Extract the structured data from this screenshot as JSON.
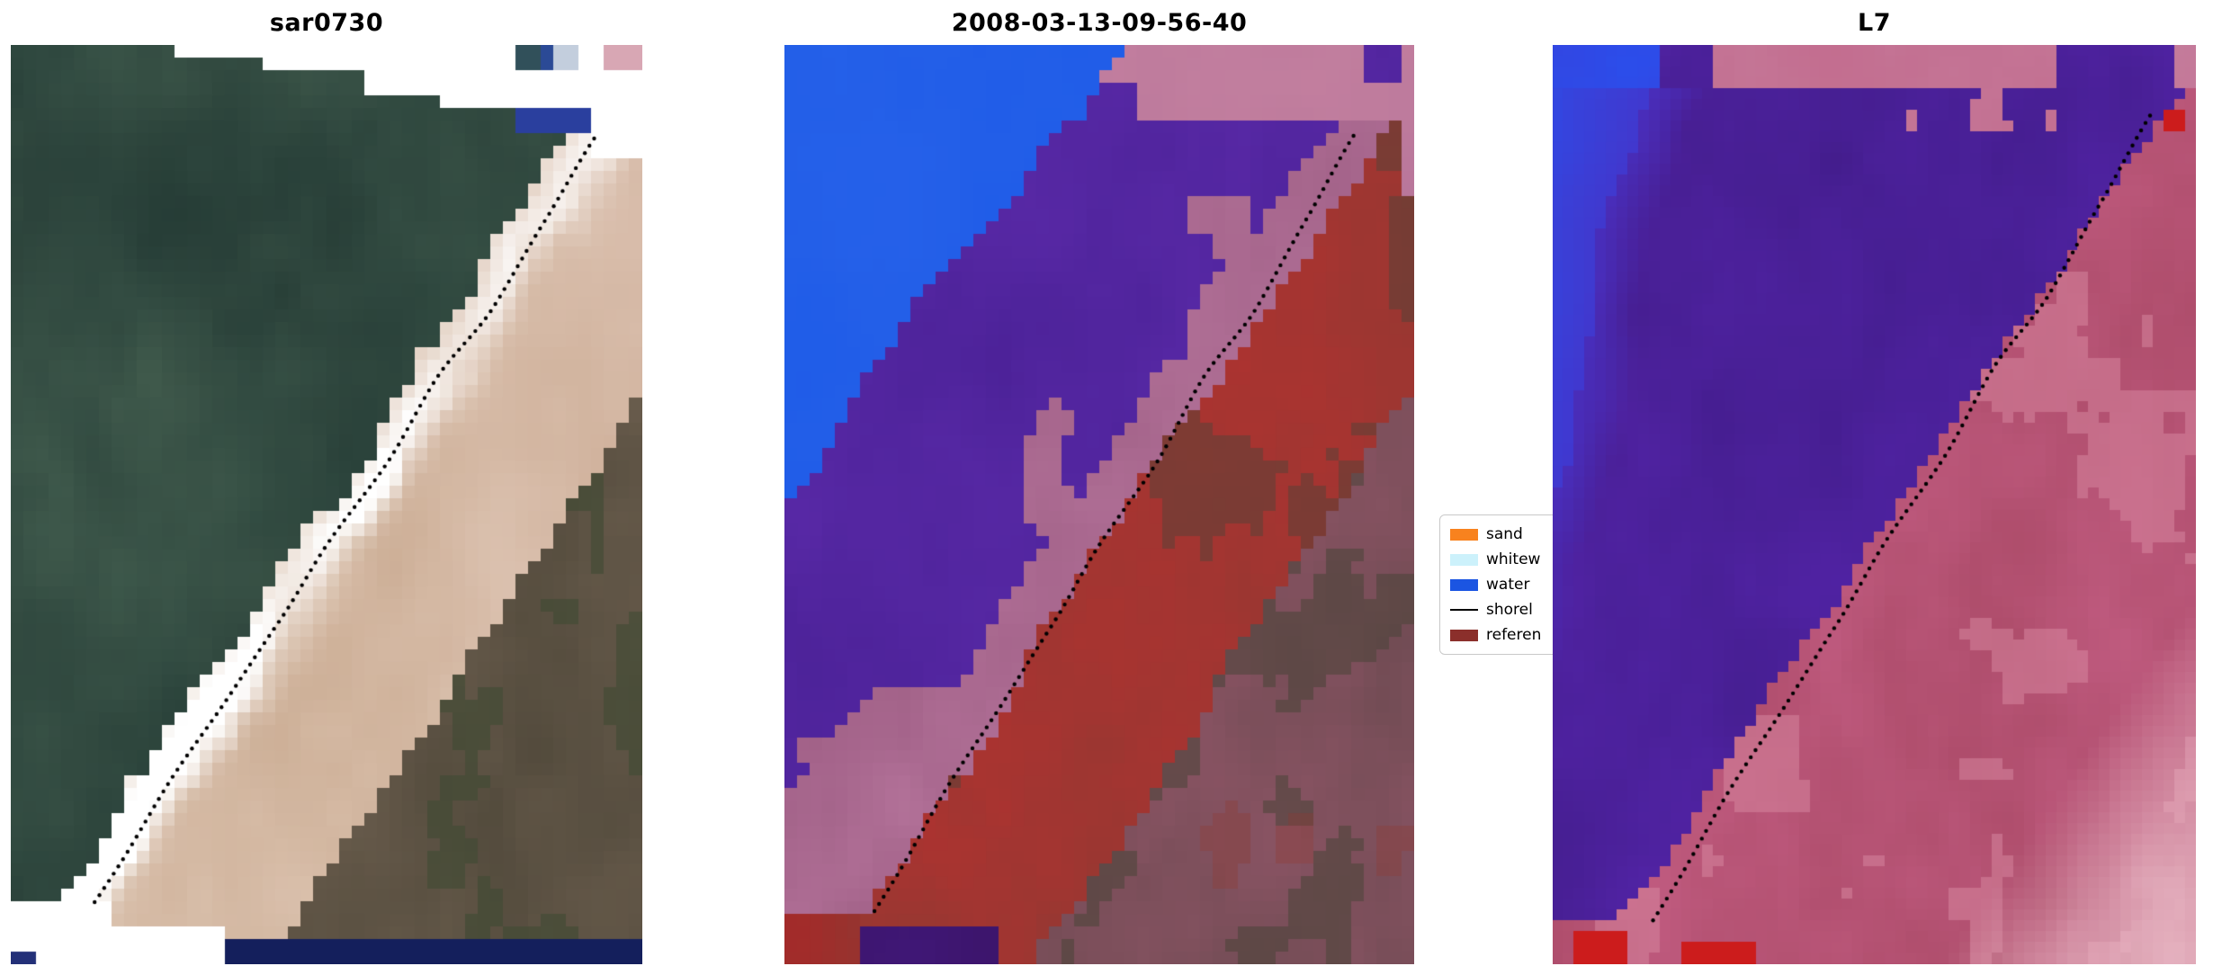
{
  "figure": {
    "background": "#ffffff",
    "panels": [
      {
        "id": "sar0730",
        "title": "sar0730"
      },
      {
        "id": "classified",
        "title": "2008-03-13-09-56-40"
      },
      {
        "id": "l7",
        "title": "L7"
      }
    ],
    "legend": {
      "items": [
        {
          "label": "sand",
          "swatch": "patch",
          "color": "#f8821e"
        },
        {
          "label": "whitew",
          "swatch": "patch",
          "color": "#ccf1fb"
        },
        {
          "label": "water",
          "swatch": "patch",
          "color": "#1b55e2"
        },
        {
          "label": "shorel",
          "swatch": "line",
          "color": "#000000"
        },
        {
          "label": "referen",
          "swatch": "patch",
          "color": "#8b2f2b"
        }
      ]
    },
    "palette": {
      "sar": {
        "water_dark": "#1e332f",
        "water": "#2c473f",
        "water_light": "#4e6a58",
        "sand": "#c9aa90",
        "sand_light": "#e2cbba",
        "sand_pink": "#d3afa4",
        "land": "#4e4739",
        "land_light": "#6e6050",
        "land_green": "#3f4a33",
        "foam": "#ffffff",
        "strip_blue": "#2a3f9e",
        "bottom_navy": "#141f5c",
        "corner_navy": "#233078",
        "mini": [
          "#31505a",
          "#2b4a96",
          "#c3cedd",
          "#ffffff",
          "#d8a7b4"
        ]
      },
      "cls": {
        "water": "#1f5ce8",
        "water2": "#2a64ea",
        "purple": "#5a2aa8",
        "purple2": "#482094",
        "mauve": "#b4739a",
        "mauve2": "#9a5a80",
        "mauve_top": "#c4809f",
        "red": "#b23230",
        "red2": "#8e3a33",
        "dusk": "#97586c",
        "dusk2": "#6b4a50",
        "olive": "#4a4438",
        "purple_dark": "#3a1262",
        "red_corner": "#a82828"
      },
      "l7": {
        "blue": "#2a50ee",
        "blue2": "#4038d0",
        "purple": "#5224a6",
        "purple2": "#431d8c",
        "rose": "#c25d82",
        "rose2": "#a84864",
        "rose_light": "#d98aa2",
        "pink_light": "#eec2cd",
        "band_pink": "#c57e9d",
        "red": "#cc1c1c"
      }
    }
  },
  "chart_data": {
    "type": "heatmap",
    "title": "",
    "panels": [
      {
        "title": "sar0730",
        "content": "satellite image: dark green-teal water upper-left, bright white breaking-wave foam along a diagonal shoreline, tan sand beach band, dark olive land lower-right, dotted black shoreline overlay, white no-data notches at top-right and bottom-left, navy data strips at edges"
      },
      {
        "title": "2008-03-13-09-56-40",
        "content": "classified raster: bright blue water class upper-left, large purple region, mauve/pink sand strip left of the dotted shoreline, brick-red reference band right of the shoreline, dusky mauve-over-dark land lower-right, pink band along top"
      },
      {
        "title": "L7",
        "content": "Landsat-7 classified raster: blue upper-left corner fading to large purple diagonal band, rose-pink region right of dotted shoreline, very light pink bottom-right corner, pink band along top, small red patches at bottom edge"
      }
    ],
    "legend_entries": [
      "sand",
      "whitew",
      "water",
      "shorel",
      "referen"
    ],
    "legend_position": "between middle and right panel, clipped by right panel"
  }
}
